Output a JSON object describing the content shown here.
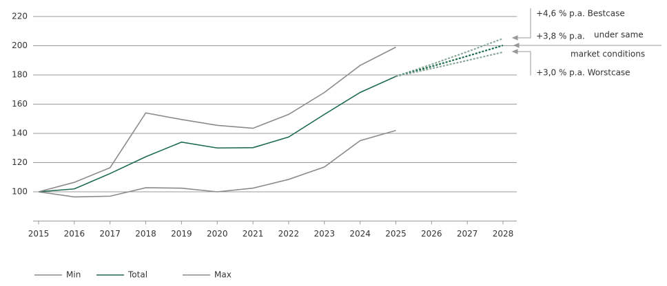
{
  "chart_data": {
    "type": "line",
    "x": [
      2015,
      2016,
      2017,
      2018,
      2019,
      2020,
      2021,
      2022,
      2023,
      2024,
      2025,
      2026,
      2027,
      2028
    ],
    "xlim": [
      2015,
      2028
    ],
    "xticks": [
      2015,
      2016,
      2017,
      2018,
      2019,
      2020,
      2021,
      2022,
      2023,
      2024,
      2025,
      2026,
      2027,
      2028
    ],
    "ylim": [
      80,
      220
    ],
    "yticks": [
      100,
      120,
      140,
      160,
      180,
      200,
      220
    ],
    "grid": true,
    "series": [
      {
        "name": "Min",
        "color": "#8a8a8a",
        "values": [
          100,
          96.5,
          97,
          102.8,
          102.5,
          100,
          102.5,
          108.5,
          117,
          135,
          142,
          null,
          null,
          null
        ]
      },
      {
        "name": "Total",
        "color": "#1a6b4a",
        "values": [
          100,
          102,
          112.5,
          124,
          134,
          130,
          130.2,
          137.5,
          153,
          168,
          179,
          null,
          null,
          null
        ]
      },
      {
        "name": "Max",
        "color": "#8a8a8a",
        "values": [
          100,
          106.5,
          116.5,
          154,
          149.5,
          145.5,
          143.5,
          153,
          168,
          186.5,
          199,
          null,
          null,
          null
        ]
      }
    ],
    "projections": [
      {
        "color": "#8aa89a",
        "style": "dotted",
        "values": [
          null,
          null,
          null,
          null,
          null,
          null,
          null,
          null,
          null,
          null,
          179,
          187.2,
          195.9,
          204.9
        ]
      },
      {
        "color": "#1a6b4a",
        "style": "dotted",
        "values": [
          null,
          null,
          null,
          null,
          null,
          null,
          null,
          null,
          null,
          null,
          179,
          185.8,
          192.9,
          200.2
        ]
      },
      {
        "color": "#8aa89a",
        "style": "dotted",
        "values": [
          null,
          null,
          null,
          null,
          null,
          null,
          null,
          null,
          null,
          null,
          179,
          184.4,
          189.9,
          195.6
        ]
      }
    ],
    "annotations": {
      "best": "+4,6 % p.a. Bestcase",
      "same": "+3,8 % p.a.",
      "same_note_1": "under same",
      "same_note_2": "market conditions",
      "worst": "+3,0 % p.a. Worstcase"
    },
    "legend": "bottom-left"
  }
}
